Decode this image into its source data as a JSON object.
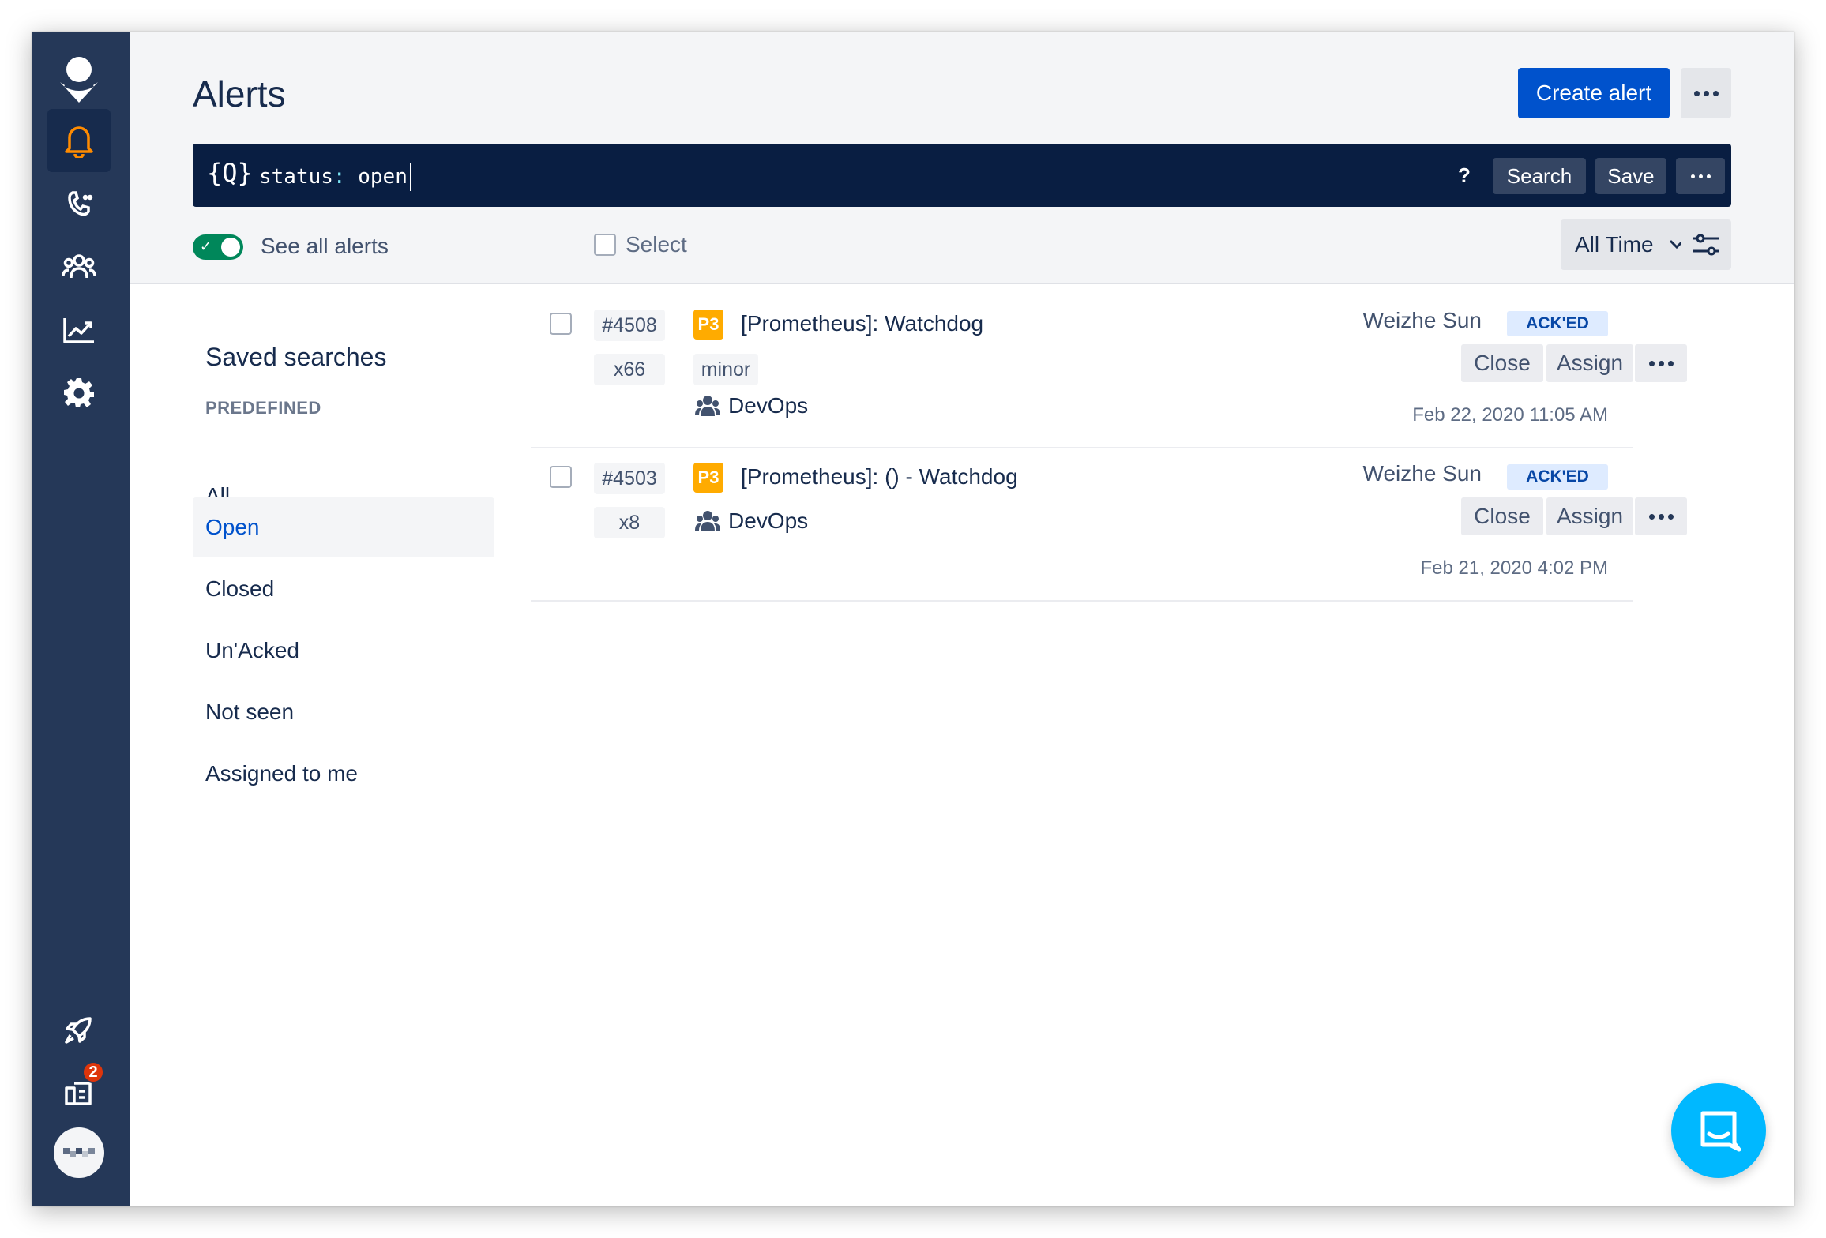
{
  "header": {
    "title": "Alerts",
    "create_button": "Create alert"
  },
  "search": {
    "glyph": "{Q}",
    "query_key": "status",
    "query_colon": ":",
    "query_value": "open",
    "help": "?",
    "search_button": "Search",
    "save_button": "Save"
  },
  "toolbar": {
    "see_all_label": "See all alerts",
    "see_all_enabled": true,
    "select_label": "Select",
    "time_range": "All Time"
  },
  "nav": {
    "items": [
      {
        "icon": "logo-icon"
      },
      {
        "icon": "bell-icon",
        "active": true
      },
      {
        "icon": "phone-icon"
      },
      {
        "icon": "teams-icon"
      },
      {
        "icon": "analytics-icon"
      },
      {
        "icon": "gear-icon"
      },
      {
        "icon": "rocket-icon"
      },
      {
        "icon": "notifications-icon",
        "badge": "2"
      },
      {
        "icon": "avatar"
      }
    ]
  },
  "saved_searches": {
    "title": "Saved searches",
    "subtitle": "PREDEFINED",
    "items": [
      "All",
      "Open",
      "Closed",
      "Un'Acked",
      "Not seen",
      "Assigned to me"
    ],
    "selected": "Open"
  },
  "alerts": [
    {
      "id": "#4508",
      "count": "x66",
      "priority": "P3",
      "title": "[Prometheus]: Watchdog",
      "tag": "minor",
      "team": "DevOps",
      "owner": "Weizhe Sun",
      "status": "ACK'ED",
      "close": "Close",
      "assign": "Assign",
      "date": "Feb 22, 2020 11:05 AM"
    },
    {
      "id": "#4503",
      "count": "x8",
      "priority": "P3",
      "title": "[Prometheus]: () - Watchdog",
      "team": "DevOps",
      "owner": "Weizhe Sun",
      "status": "ACK'ED",
      "close": "Close",
      "assign": "Assign",
      "date": "Feb 21, 2020 4:02 PM"
    }
  ],
  "colors": {
    "rail": "#253858",
    "primary": "#0052cc",
    "search_bg": "#091e42",
    "priority": "#ffab00",
    "toggle_on": "#00875a",
    "chat": "#00b8ff",
    "bell_active": "#ff8b00"
  }
}
